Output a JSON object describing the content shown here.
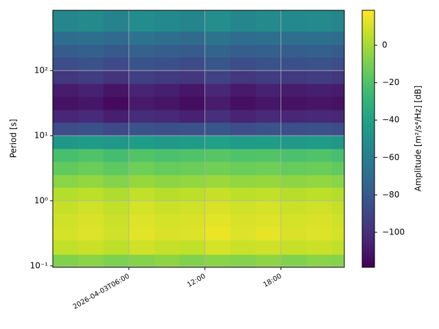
{
  "chart_data": {
    "type": "heatmap",
    "y_label": "Period [s]",
    "colorbar_label": "Amplitude [m²/s⁴/Hz] [dB]",
    "colormap": "viridis",
    "ylog": true,
    "grid": true,
    "x_edges": [
      0,
      2,
      4,
      6,
      8,
      10,
      12,
      14,
      16,
      18,
      20,
      22,
      23
    ],
    "y_edges": [
      0.095,
      0.15,
      0.25,
      0.4,
      0.63,
      1,
      1.6,
      2.5,
      4,
      6.3,
      10,
      16,
      25,
      40,
      63,
      100,
      160,
      250,
      400,
      843
    ],
    "xlim": [
      0,
      23
    ],
    "ylim": [
      0.095,
      843
    ],
    "xticks": [
      {
        "value": 6,
        "label": "2026-04-03T06:00"
      },
      {
        "value": 12,
        "label": "12:00"
      },
      {
        "value": 18,
        "label": "18:00"
      }
    ],
    "yticks": [
      {
        "value": 0.1,
        "label": "10⁻¹"
      },
      {
        "value": 1,
        "label": "10⁰"
      },
      {
        "value": 10,
        "label": "10¹"
      },
      {
        "value": 100,
        "label": "10²"
      }
    ],
    "clim": [
      -118.7,
      18.7
    ],
    "cticks": [
      {
        "value": -100,
        "label": "−100"
      },
      {
        "value": -80,
        "label": "−80"
      },
      {
        "value": -60,
        "label": "−60"
      },
      {
        "value": -40,
        "label": "−40"
      },
      {
        "value": -20,
        "label": "−20"
      },
      0
    ],
    "values": [
      [
        -8,
        -6,
        -9,
        -7,
        -5,
        -8,
        -6,
        -7,
        -5,
        -8,
        -6,
        -7
      ],
      [
        6,
        8,
        5,
        9,
        7,
        6,
        10,
        8,
        9,
        7,
        8,
        6
      ],
      [
        10,
        12,
        9,
        13,
        11,
        12,
        15,
        12,
        14,
        11,
        12,
        10
      ],
      [
        9,
        11,
        8,
        12,
        10,
        11,
        13,
        11,
        12,
        10,
        11,
        9
      ],
      [
        7,
        9,
        6,
        10,
        8,
        9,
        11,
        9,
        10,
        8,
        9,
        7
      ],
      [
        3,
        5,
        2,
        6,
        4,
        5,
        7,
        5,
        6,
        4,
        5,
        3
      ],
      [
        -6,
        -4,
        -7,
        -3,
        -5,
        -4,
        -2,
        -4,
        -3,
        -5,
        -4,
        -6
      ],
      [
        -15,
        -13,
        -16,
        -12,
        -14,
        -13,
        -11,
        -13,
        -12,
        -14,
        -13,
        -15
      ],
      [
        -22,
        -20,
        -23,
        -19,
        -21,
        -20,
        -18,
        -20,
        -19,
        -21,
        -20,
        -22
      ],
      [
        -46,
        -44,
        -47,
        -43,
        -45,
        -44,
        -42,
        -44,
        -43,
        -45,
        -44,
        -46
      ],
      [
        -86,
        -84,
        -88,
        -83,
        -85,
        -84,
        -82,
        -86,
        -83,
        -85,
        -84,
        -86
      ],
      [
        -104,
        -102,
        -107,
        -101,
        -103,
        -106,
        -100,
        -105,
        -102,
        -104,
        -103,
        -104
      ],
      [
        -112,
        -110,
        -115,
        -109,
        -111,
        -114,
        -108,
        -113,
        -110,
        -112,
        -111,
        -112
      ],
      [
        -108,
        -106,
        -111,
        -105,
        -107,
        -110,
        -104,
        -109,
        -106,
        -108,
        -107,
        -108
      ],
      [
        -96,
        -94,
        -98,
        -93,
        -95,
        -97,
        -92,
        -96,
        -94,
        -95,
        -94,
        -96
      ],
      [
        -86,
        -84,
        -88,
        -83,
        -85,
        -87,
        -82,
        -86,
        -84,
        -85,
        -84,
        -86
      ],
      [
        -79,
        -77,
        -80,
        -76,
        -78,
        -79,
        -75,
        -78,
        -77,
        -78,
        -77,
        -79
      ],
      [
        -70,
        -68,
        -72,
        -67,
        -69,
        -71,
        -66,
        -70,
        -68,
        -69,
        -68,
        -70
      ],
      [
        -55,
        -53,
        -57,
        -52,
        -54,
        -56,
        -51,
        -55,
        -53,
        -54,
        -53,
        -55
      ]
    ]
  }
}
